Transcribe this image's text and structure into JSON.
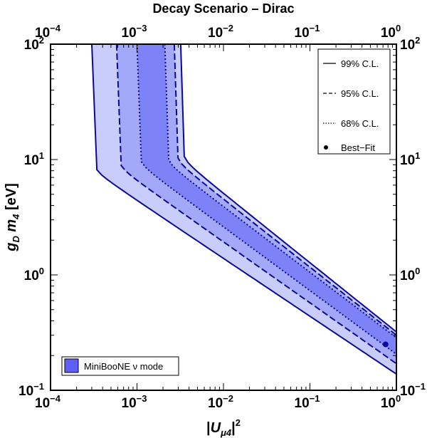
{
  "chart_data": {
    "type": "area",
    "title": "Decay Scenario – Dirac",
    "xlabel": "|U_μ4|^2",
    "ylabel": "g_D m_4 [eV]",
    "xscale": "log",
    "yscale": "log",
    "xlim": [
      0.0001,
      1
    ],
    "ylim": [
      0.1,
      100
    ],
    "x_ticks": [
      {
        "base": "10",
        "exp": "−4"
      },
      {
        "base": "10",
        "exp": "−3"
      },
      {
        "base": "10",
        "exp": "−2"
      },
      {
        "base": "10",
        "exp": "−1"
      },
      {
        "base": "10",
        "exp": "0"
      }
    ],
    "y_ticks": [
      {
        "base": "10",
        "exp": "−1"
      },
      {
        "base": "10",
        "exp": "0"
      },
      {
        "base": "10",
        "exp": "1"
      },
      {
        "base": "10",
        "exp": "2"
      }
    ],
    "series": [
      {
        "name": "99% C.L.",
        "style": "solid",
        "color": "#c9cdfb",
        "left_edge": {
          "x_vertical": 0.0003,
          "knee_y": 8.5,
          "slope": -0.5,
          "y_at_xmax": 0.138
        },
        "right_edge": {
          "x_vertical": 0.0032,
          "knee_y": 10.0,
          "slope": -0.5,
          "y_at_xmax": 0.32
        }
      },
      {
        "name": "95% C.L.",
        "style": "dashed",
        "color": "#a3a8f8",
        "left_edge": {
          "x_vertical": 0.00058,
          "knee_y": 9.0,
          "slope": -0.5,
          "y_at_xmax": 0.17
        },
        "right_edge": {
          "x_vertical": 0.0027,
          "knee_y": 9.8,
          "slope": -0.5,
          "y_at_xmax": 0.3
        }
      },
      {
        "name": "68% C.L.",
        "style": "dotted",
        "color": "#7d82f6",
        "left_edge": {
          "x_vertical": 0.001,
          "knee_y": 9.5,
          "slope": -0.5,
          "y_at_xmax": 0.205
        },
        "right_edge": {
          "x_vertical": 0.0021,
          "knee_y": 9.6,
          "slope": -0.5,
          "y_at_xmax": 0.285
        }
      }
    ],
    "best_fit": {
      "label": "Best−Fit",
      "x": 0.75,
      "y": 0.25
    },
    "legend": {
      "placement": "top-right",
      "items": [
        "99% C.L.",
        "95% C.L.",
        "68% C.L.",
        "Best−Fit"
      ]
    },
    "dataset_legend": {
      "placement": "bottom-left",
      "label": "MiniBooNE ν mode",
      "color": "#5f5ff7"
    },
    "line_color": "#0a0a96",
    "grid": false
  }
}
